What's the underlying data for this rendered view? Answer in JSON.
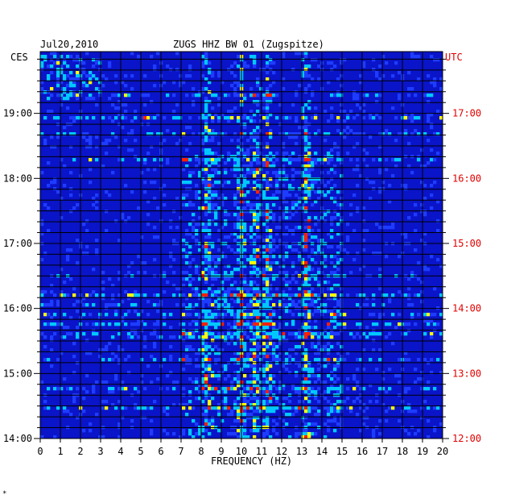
{
  "header": {
    "date": "Jul20,2010",
    "station": "ZUGS HHZ BW 01 (Zugspitze)",
    "left_zone": "CES",
    "right_zone": "UTC"
  },
  "footer_mark": "*",
  "chart_data": {
    "type": "heatmap",
    "title": "ZUGS HHZ BW 01 (Zugspitze)",
    "xlabel": "FREQUENCY (HZ)",
    "ylabel": "",
    "x_ticks": [
      "0",
      "1",
      "2",
      "3",
      "4",
      "5",
      "6",
      "7",
      "8",
      "9",
      "10",
      "11",
      "12",
      "13",
      "14",
      "15",
      "16",
      "17",
      "18",
      "19",
      "20"
    ],
    "xlim": [
      0,
      20
    ],
    "y_ticks_left": [
      "19:00",
      "18:00",
      "17:00",
      "16:00",
      "15:00",
      "14:00"
    ],
    "y_ticks_right": [
      "17:00",
      "16:00",
      "15:00",
      "14:00",
      "13:00",
      "12:00"
    ],
    "y_tick_hours_left": [
      19,
      18,
      17,
      16,
      15,
      14
    ],
    "ylim_hours_left": [
      14,
      19.95
    ],
    "colors": {
      "background": "#0a14c8",
      "low": "#1e3cff",
      "mid": "#00c8ff",
      "high": "#ffff00",
      "peak": "#ff2000",
      "utc_label": "#e00000"
    },
    "energy_bands_hz": [
      8.3,
      10.0,
      10.7,
      11.3,
      13.2
    ]
  }
}
